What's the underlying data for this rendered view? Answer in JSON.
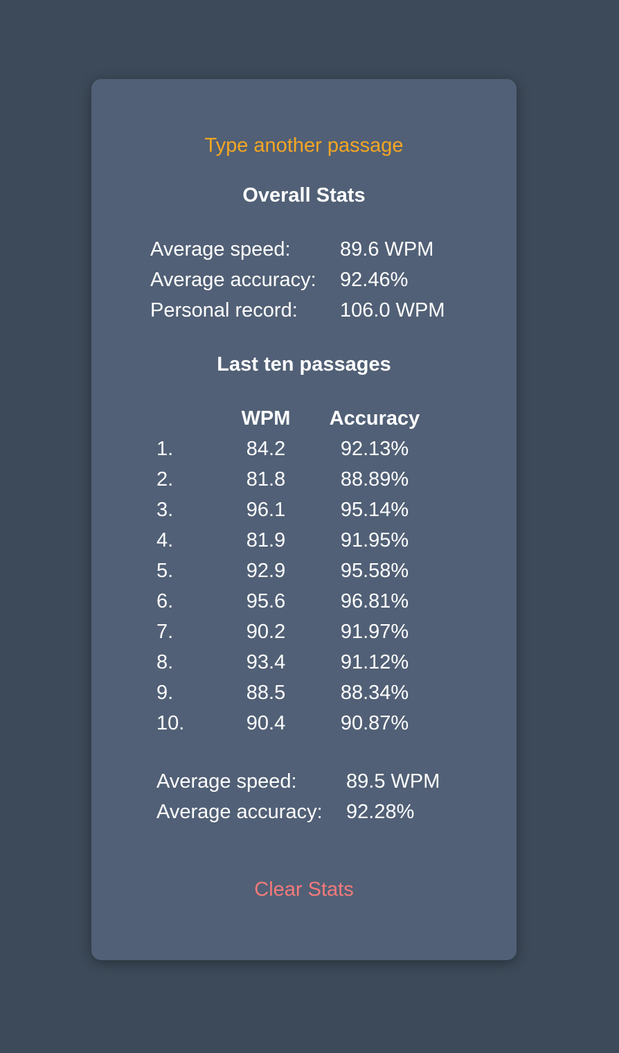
{
  "actions": {
    "another_passage": "Type another passage",
    "clear_stats": "Clear Stats"
  },
  "overall": {
    "title": "Overall Stats",
    "average_speed_label": "Average speed:",
    "average_speed_value": "89.6 WPM",
    "average_accuracy_label": "Average accuracy:",
    "average_accuracy_value": "92.46%",
    "personal_record_label": "Personal record:",
    "personal_record_value": "106.0 WPM"
  },
  "last_ten": {
    "title": "Last ten passages",
    "columns": [
      "",
      "WPM",
      "Accuracy"
    ],
    "rows": [
      {
        "index": "1.",
        "wpm": "84.2",
        "accuracy": "92.13%"
      },
      {
        "index": "2.",
        "wpm": "81.8",
        "accuracy": "88.89%"
      },
      {
        "index": "3.",
        "wpm": "96.1",
        "accuracy": "95.14%"
      },
      {
        "index": "4.",
        "wpm": "81.9",
        "accuracy": "91.95%"
      },
      {
        "index": "5.",
        "wpm": "92.9",
        "accuracy": "95.58%"
      },
      {
        "index": "6.",
        "wpm": "95.6",
        "accuracy": "96.81%"
      },
      {
        "index": "7.",
        "wpm": "90.2",
        "accuracy": "91.97%"
      },
      {
        "index": "8.",
        "wpm": "93.4",
        "accuracy": "91.12%"
      },
      {
        "index": "9.",
        "wpm": "88.5",
        "accuracy": "88.34%"
      },
      {
        "index": "10.",
        "wpm": "90.4",
        "accuracy": "90.87%"
      }
    ],
    "average_speed_label": "Average speed:",
    "average_speed_value": "89.5 WPM",
    "average_accuracy_label": "Average accuracy:",
    "average_accuracy_value": "92.28%"
  }
}
